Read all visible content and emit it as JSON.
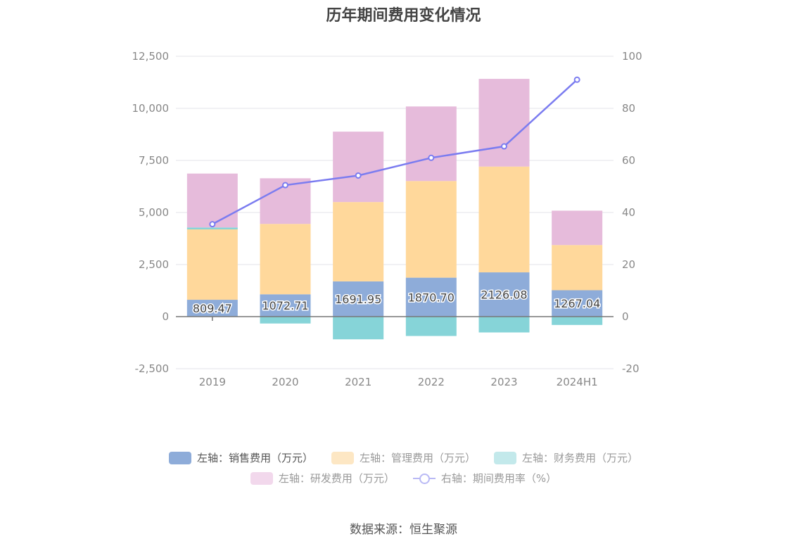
{
  "title": "历年期间费用变化情况",
  "source_text": "数据来源：恒生聚源",
  "chart_data": {
    "type": "bar",
    "stacked": true,
    "categories": [
      "2019",
      "2020",
      "2021",
      "2022",
      "2023",
      "2024H1"
    ],
    "left_axis": {
      "ylim": [
        -2500,
        12500
      ],
      "ticks": [
        "-2,500",
        "0",
        "2,500",
        "5,000",
        "7,500",
        "10,000",
        "12,500"
      ],
      "tick_values": [
        -2500,
        0,
        2500,
        5000,
        7500,
        10000,
        12500
      ]
    },
    "right_axis": {
      "ylim": [
        -20,
        100
      ],
      "ticks": [
        "-20",
        "0",
        "20",
        "40",
        "60",
        "80",
        "100"
      ],
      "tick_values": [
        -20,
        0,
        20,
        40,
        60,
        80,
        100
      ]
    },
    "grid": true,
    "legend_position": "bottom",
    "series": [
      {
        "name": "左轴：销售费用（万元）",
        "axis": "left",
        "color": "#8eacd9",
        "values": [
          809.47,
          1072.71,
          1691.95,
          1870.7,
          2126.08,
          1267.04
        ],
        "labels": [
          "809.47",
          "1072.71",
          "1691.95",
          "1870.70",
          "2126.08",
          "1267.04"
        ]
      },
      {
        "name": "左轴：管理费用（万元）",
        "axis": "left",
        "color": "#ffd89b",
        "values": [
          3380,
          3380,
          3810,
          4640,
          5080,
          2170
        ]
      },
      {
        "name": "左轴：财务费用（万元）",
        "axis": "left",
        "color": "#86d4d8",
        "values": [
          90,
          -330,
          -1090,
          -930,
          -760,
          -400
        ]
      },
      {
        "name": "左轴：研发费用（万元）",
        "axis": "left",
        "color": "#e6bbdb",
        "values": [
          2590,
          2190,
          3380,
          3580,
          4210,
          1650
        ]
      },
      {
        "name": "右轴：期间费用率（%）",
        "axis": "right",
        "type": "line",
        "color": "#7b7cf0",
        "values": [
          35.5,
          50.5,
          54.2,
          61.0,
          65.4,
          91.0
        ]
      }
    ]
  },
  "legend": [
    {
      "label": "左轴：销售费用（万元）",
      "color": "#8eacd9",
      "kind": "box",
      "active": true
    },
    {
      "label": "左轴：管理费用（万元）",
      "color": "#fde7c4",
      "kind": "box",
      "active": false
    },
    {
      "label": "左轴：财务费用（万元）",
      "color": "#c3e9eb",
      "kind": "box",
      "active": false
    },
    {
      "label": "左轴：研发费用（万元）",
      "color": "#f2d8ec",
      "kind": "box",
      "active": false
    },
    {
      "label": "右轴：期间费用率（%）",
      "color": "#7b7cf0",
      "kind": "line",
      "active": false
    }
  ]
}
